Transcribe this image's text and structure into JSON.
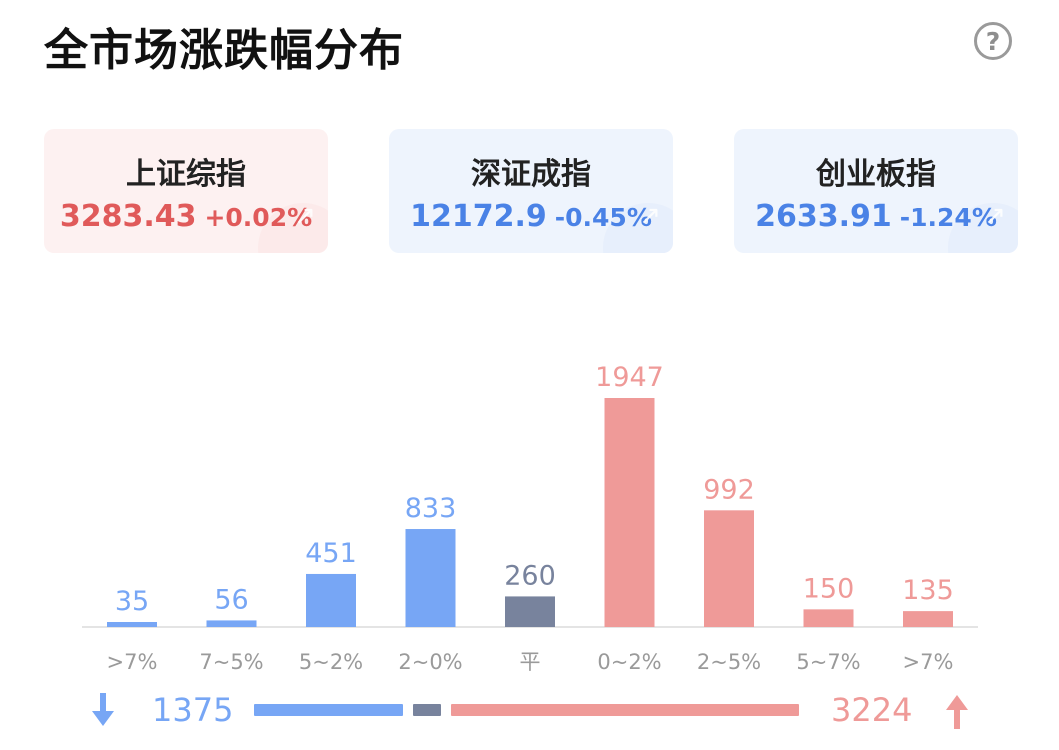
{
  "title": "全市场涨跌幅分布",
  "indices": [
    {
      "name": "上证综指",
      "value": "3283.43",
      "change": "+0.02%",
      "direction": "up"
    },
    {
      "name": "深证成指",
      "value": "12172.9",
      "change": "-0.45%",
      "direction": "down"
    },
    {
      "name": "创业板指",
      "value": "2633.91",
      "change": "-1.24%",
      "direction": "down"
    }
  ],
  "colors": {
    "down": "#77a6f5",
    "flat": "#78839d",
    "up": "#ef9a98",
    "up_text": "#e05a5a",
    "down_text": "#4a82e6"
  },
  "chart_data": {
    "type": "bar",
    "categories": [
      ">7%",
      "7~5%",
      "5~2%",
      "2~0%",
      "平",
      "0~2%",
      "2~5%",
      "5~7%",
      ">7%"
    ],
    "values": [
      35,
      56,
      451,
      833,
      260,
      1947,
      992,
      150,
      135
    ],
    "groups": [
      "down",
      "down",
      "down",
      "down",
      "flat",
      "up",
      "up",
      "up",
      "up"
    ],
    "title": "",
    "xlabel": "",
    "ylabel": "",
    "ylim": [
      0,
      1947
    ],
    "grid": false
  },
  "summary": {
    "down_total": "1375",
    "up_total": "3224",
    "down_count": 1375,
    "flat_count": 260,
    "up_count": 3224
  }
}
